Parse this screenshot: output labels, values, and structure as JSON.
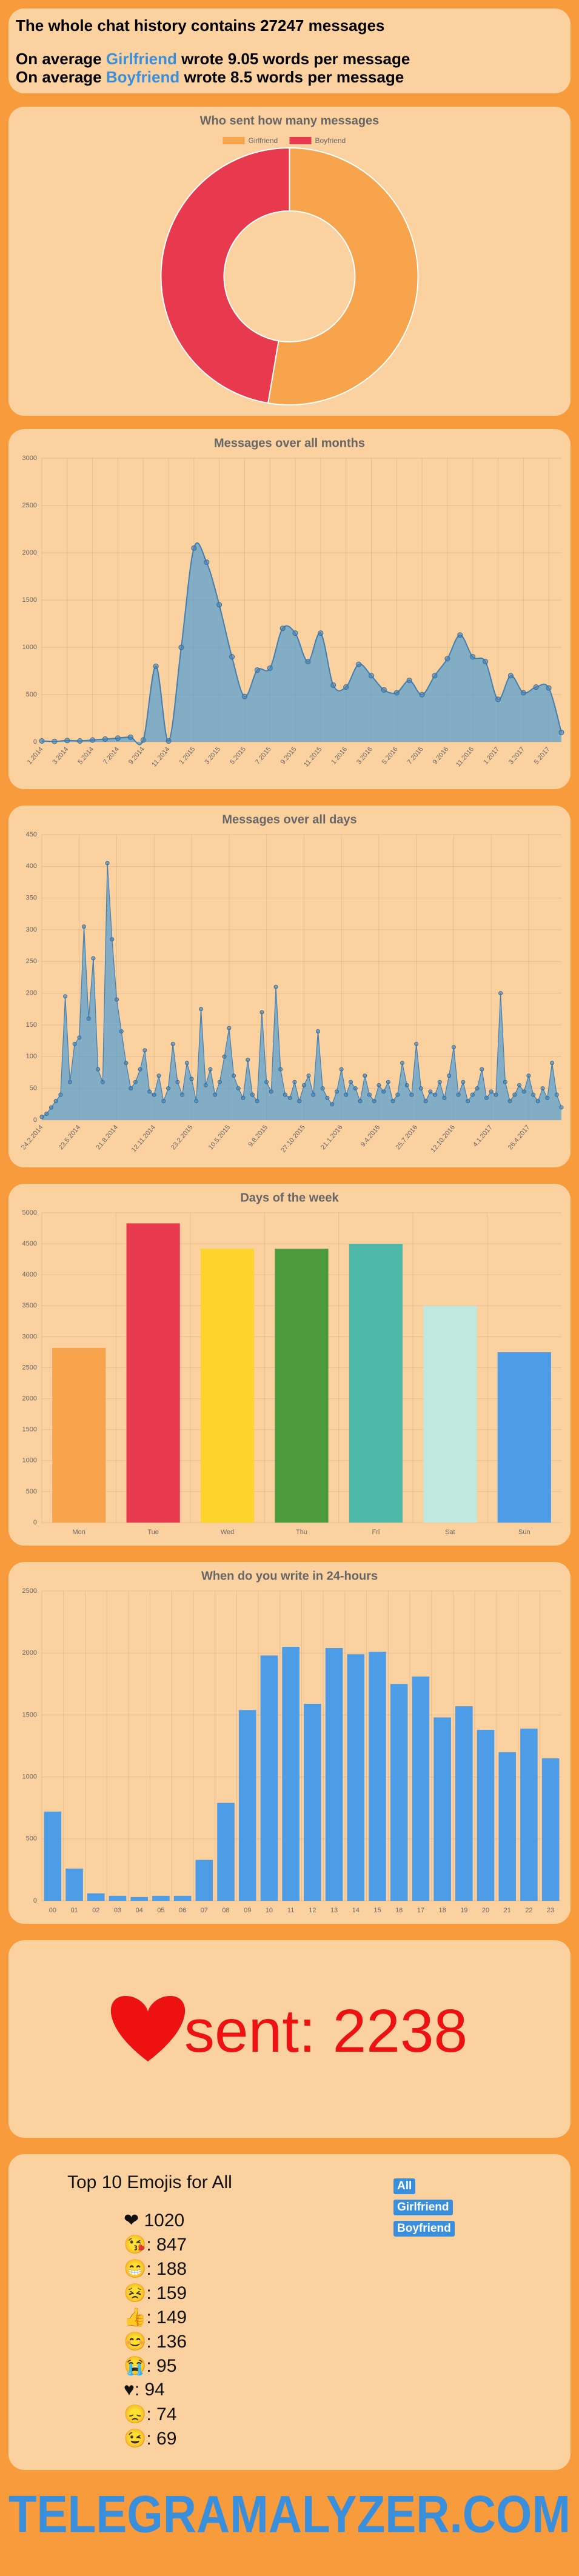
{
  "header": {
    "total_text": "The whole chat history contains",
    "total": 27247,
    "total_unit": "messages",
    "averages": [
      {
        "lead": "On average",
        "name": "Girlfriend",
        "verb": "wrote",
        "words": 9.05,
        "unit": "words per message"
      },
      {
        "lead": "On average",
        "name": "Boyfriend",
        "verb": "wrote",
        "words": 8.5,
        "unit": "words per message"
      }
    ]
  },
  "chart_data": [
    {
      "type": "doughnut",
      "title": "Who sent how many messages",
      "categories": [
        "Girlfriend",
        "Boyfriend"
      ],
      "values": [
        14350,
        12897
      ],
      "colors": [
        "#f7a44c",
        "#e8394f"
      ],
      "legend": "top"
    },
    {
      "type": "area",
      "title": "Messages over all months",
      "color": "#5b9fd1",
      "grid": true,
      "categories": [
        "1.2014",
        null,
        "3.2014",
        null,
        "5.2014",
        null,
        "7.2014",
        null,
        "9.2014",
        null,
        "11.2014",
        null,
        "1.2015",
        null,
        "3.2015",
        null,
        "5.2015",
        null,
        "7.2015",
        null,
        "9.2015",
        null,
        "11.2015",
        null,
        "1.2016",
        null,
        "3.2016",
        null,
        "5.2016",
        null,
        "7.2016",
        null,
        "9.2016",
        null,
        "11.2016",
        null,
        "1.2017",
        null,
        "3.2017",
        null,
        "5.2017",
        null
      ],
      "values": [
        10,
        5,
        15,
        10,
        20,
        30,
        40,
        50,
        20,
        800,
        10,
        1000,
        2050,
        1900,
        1450,
        900,
        480,
        760,
        780,
        1200,
        1150,
        850,
        1150,
        600,
        580,
        820,
        700,
        550,
        520,
        650,
        500,
        700,
        880,
        1130,
        900,
        850,
        450,
        700,
        520,
        580,
        570,
        100
      ],
      "ylim": [
        0,
        3000
      ],
      "yticks": [
        0,
        500,
        1000,
        1500,
        2000,
        2500,
        3000
      ]
    },
    {
      "type": "area",
      "title": "Messages over all days",
      "color": "#5b9fd1",
      "grid": true,
      "categories": [
        "24.2.2014",
        null,
        null,
        null,
        null,
        null,
        null,
        null,
        "23.5.2014",
        null,
        null,
        null,
        null,
        null,
        null,
        null,
        "21.8.2014",
        null,
        null,
        null,
        null,
        null,
        null,
        null,
        "12.11.2014",
        null,
        null,
        null,
        null,
        null,
        null,
        null,
        "23.2.2015",
        null,
        null,
        null,
        null,
        null,
        null,
        null,
        "10.5.2015",
        null,
        null,
        null,
        null,
        null,
        null,
        null,
        "9.8.2015",
        null,
        null,
        null,
        null,
        null,
        null,
        null,
        "27.10.2015",
        null,
        null,
        null,
        null,
        null,
        null,
        null,
        "21.1.2016",
        null,
        null,
        null,
        null,
        null,
        null,
        null,
        "9.4.2016",
        null,
        null,
        null,
        null,
        null,
        null,
        null,
        "25.7.2016",
        null,
        null,
        null,
        null,
        null,
        null,
        null,
        "12.10.2016",
        null,
        null,
        null,
        null,
        null,
        null,
        null,
        "4.1.2017",
        null,
        null,
        null,
        null,
        null,
        null,
        null,
        "26.4.2017",
        null,
        null,
        null,
        null,
        null,
        null,
        null
      ],
      "values": [
        5,
        10,
        20,
        30,
        40,
        195,
        60,
        120,
        130,
        305,
        160,
        255,
        80,
        60,
        405,
        285,
        190,
        140,
        90,
        50,
        60,
        80,
        110,
        45,
        40,
        70,
        30,
        50,
        120,
        60,
        40,
        90,
        65,
        30,
        175,
        55,
        80,
        40,
        60,
        100,
        145,
        70,
        50,
        35,
        95,
        40,
        30,
        170,
        60,
        45,
        210,
        80,
        40,
        35,
        60,
        30,
        55,
        70,
        40,
        140,
        50,
        35,
        25,
        45,
        80,
        40,
        60,
        50,
        30,
        70,
        40,
        30,
        55,
        45,
        60,
        30,
        40,
        90,
        55,
        40,
        120,
        50,
        30,
        45,
        40,
        60,
        35,
        70,
        115,
        40,
        60,
        30,
        40,
        50,
        80,
        35,
        45,
        40,
        200,
        60,
        30,
        40,
        55,
        45,
        70,
        40,
        30,
        50,
        35,
        90,
        40,
        20
      ],
      "ylim": [
        0,
        450
      ],
      "yticks": [
        0,
        50,
        100,
        150,
        200,
        250,
        300,
        350,
        400,
        450
      ]
    },
    {
      "type": "bar",
      "title": "Days of the week",
      "grid": true,
      "categories": [
        "Mon",
        "Tue",
        "Wed",
        "Thu",
        "Fri",
        "Sat",
        "Sun"
      ],
      "values": [
        2820,
        4830,
        4420,
        4420,
        4500,
        3500,
        2750
      ],
      "colors": [
        "#f7a44c",
        "#e8394f",
        "#fdd42b",
        "#4b9b3d",
        "#4db8a8",
        "#bfe9dc",
        "#4d9ce8"
      ],
      "ylim": [
        0,
        5000
      ],
      "yticks": [
        0,
        500,
        1000,
        1500,
        2000,
        2500,
        3000,
        3500,
        4000,
        4500,
        5000
      ]
    },
    {
      "type": "bar",
      "title": "When do you write in 24-hours",
      "grid": true,
      "color": "#4d9ce8",
      "categories": [
        "00",
        "01",
        "02",
        "03",
        "04",
        "05",
        "06",
        "07",
        "08",
        "09",
        "10",
        "11",
        "12",
        "13",
        "14",
        "15",
        "16",
        "17",
        "18",
        "19",
        "20",
        "21",
        "22",
        "23"
      ],
      "values": [
        720,
        260,
        60,
        40,
        30,
        40,
        40,
        330,
        790,
        1540,
        1980,
        2050,
        1590,
        2040,
        1990,
        2010,
        1750,
        1810,
        1480,
        1570,
        1380,
        1200,
        1390,
        1150
      ],
      "ylim": [
        0,
        2500
      ],
      "yticks": [
        0,
        500,
        1000,
        1500,
        2000,
        2500
      ]
    }
  ],
  "heart": {
    "label": "sent:",
    "count": 2238
  },
  "emojis": {
    "title": "Top 10 Emojis for All",
    "filters": [
      "All",
      "Girlfriend",
      "Boyfriend"
    ],
    "items": [
      {
        "emoji": "❤",
        "count": 1020
      },
      {
        "emoji": "😘:",
        "count": 847
      },
      {
        "emoji": "😁:",
        "count": 188
      },
      {
        "emoji": "😣:",
        "count": 159
      },
      {
        "emoji": "👍:",
        "count": 149
      },
      {
        "emoji": "😊:",
        "count": 136
      },
      {
        "emoji": "😭:",
        "count": 95
      },
      {
        "emoji": "♥:",
        "count": 94
      },
      {
        "emoji": "😞:",
        "count": 74
      },
      {
        "emoji": "😉:",
        "count": 69
      }
    ]
  },
  "footer": {
    "brand": "TELEGRAMALYZER.COM"
  }
}
